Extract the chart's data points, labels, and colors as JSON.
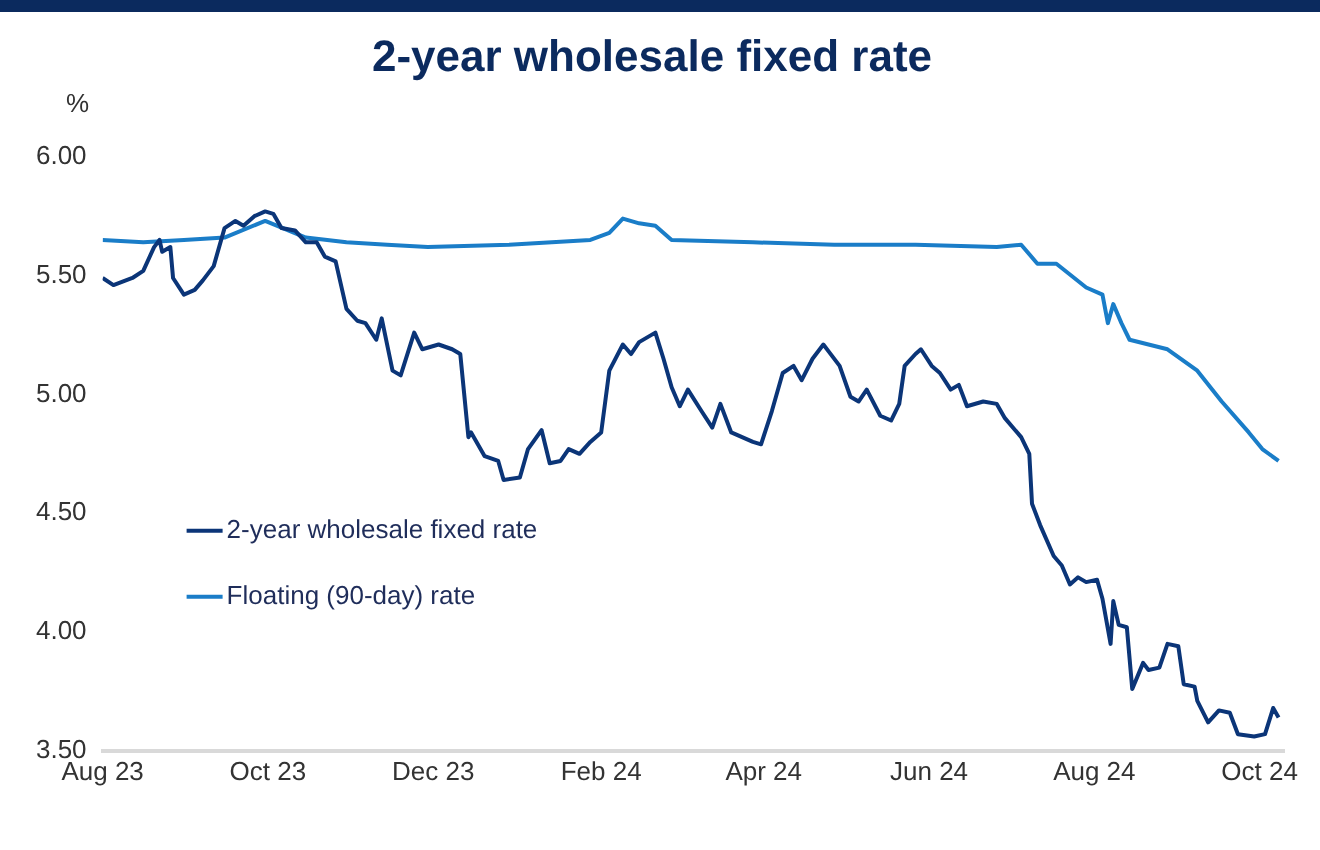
{
  "chart_data": {
    "type": "line",
    "title": "2-year wholesale fixed rate",
    "ylabel": "%",
    "xlim": [
      "2023-08-01",
      "2024-10-10"
    ],
    "xticks": [
      {
        "value": "2023-08-01",
        "label": "Aug 23"
      },
      {
        "value": "2023-10-01",
        "label": "Oct 23"
      },
      {
        "value": "2023-12-01",
        "label": "Dec 23"
      },
      {
        "value": "2024-02-01",
        "label": "Feb 24"
      },
      {
        "value": "2024-04-01",
        "label": "Apr 24"
      },
      {
        "value": "2024-06-01",
        "label": "Jun 24"
      },
      {
        "value": "2024-08-01",
        "label": "Aug 24"
      },
      {
        "value": "2024-10-01",
        "label": "Oct 24"
      }
    ],
    "ylim": [
      3.5,
      6.0
    ],
    "yticks": [
      {
        "value": 3.5,
        "label": "3.50"
      },
      {
        "value": 4.0,
        "label": "4.00"
      },
      {
        "value": 4.5,
        "label": "4.50"
      },
      {
        "value": 5.0,
        "label": "5.00"
      },
      {
        "value": 5.5,
        "label": "5.50"
      },
      {
        "value": 6.0,
        "label": "6.00"
      }
    ],
    "grid": false,
    "legend": "bottom left",
    "marker": "none",
    "line_style": "solid",
    "series": [
      {
        "name": "2-year wholesale fixed rate",
        "color": "#0b3578",
        "x": [
          "2023-08-01",
          "2023-08-05",
          "2023-08-12",
          "2023-08-16",
          "2023-08-20",
          "2023-08-22",
          "2023-08-23",
          "2023-08-26",
          "2023-08-27",
          "2023-08-31",
          "2023-09-04",
          "2023-09-07",
          "2023-09-11",
          "2023-09-15",
          "2023-09-19",
          "2023-09-22",
          "2023-09-26",
          "2023-09-30",
          "2023-10-03",
          "2023-10-06",
          "2023-10-11",
          "2023-10-15",
          "2023-10-19",
          "2023-10-22",
          "2023-10-26",
          "2023-10-30",
          "2023-11-03",
          "2023-11-06",
          "2023-11-10",
          "2023-11-12",
          "2023-11-16",
          "2023-11-19",
          "2023-11-24",
          "2023-11-27",
          "2023-12-03",
          "2023-12-08",
          "2023-12-11",
          "2023-12-14",
          "2023-12-15",
          "2023-12-20",
          "2023-12-25",
          "2023-12-27",
          "2024-01-02",
          "2024-01-05",
          "2024-01-10",
          "2024-01-13",
          "2024-01-17",
          "2024-01-20",
          "2024-01-24",
          "2024-01-28",
          "2024-02-01",
          "2024-02-04",
          "2024-02-09",
          "2024-02-12",
          "2024-02-15",
          "2024-02-21",
          "2024-02-24",
          "2024-02-27",
          "2024-03-01",
          "2024-03-04",
          "2024-03-09",
          "2024-03-13",
          "2024-03-16",
          "2024-03-20",
          "2024-03-28",
          "2024-03-31",
          "2024-04-04",
          "2024-04-08",
          "2024-04-12",
          "2024-04-15",
          "2024-04-19",
          "2024-04-23",
          "2024-04-25",
          "2024-04-29",
          "2024-05-03",
          "2024-05-06",
          "2024-05-09",
          "2024-05-14",
          "2024-05-18",
          "2024-05-21",
          "2024-05-23",
          "2024-05-27",
          "2024-05-29",
          "2024-06-02",
          "2024-06-05",
          "2024-06-09",
          "2024-06-12",
          "2024-06-15",
          "2024-06-21",
          "2024-06-26",
          "2024-06-29",
          "2024-07-05",
          "2024-07-08",
          "2024-07-09",
          "2024-07-12",
          "2024-07-17",
          "2024-07-20",
          "2024-07-23",
          "2024-07-26",
          "2024-07-29",
          "2024-08-02",
          "2024-08-04",
          "2024-08-07",
          "2024-08-08",
          "2024-08-10",
          "2024-08-13",
          "2024-08-15",
          "2024-08-19",
          "2024-08-21",
          "2024-08-25",
          "2024-08-28",
          "2024-09-01",
          "2024-09-03",
          "2024-09-07",
          "2024-09-08",
          "2024-09-12",
          "2024-09-16",
          "2024-09-20",
          "2024-09-23",
          "2024-09-29",
          "2024-10-03",
          "2024-10-06",
          "2024-10-08"
        ],
        "values": [
          5.49,
          5.46,
          5.49,
          5.52,
          5.62,
          5.65,
          5.6,
          5.62,
          5.49,
          5.42,
          5.44,
          5.48,
          5.54,
          5.7,
          5.73,
          5.71,
          5.75,
          5.77,
          5.76,
          5.7,
          5.69,
          5.64,
          5.64,
          5.58,
          5.56,
          5.36,
          5.31,
          5.3,
          5.23,
          5.32,
          5.1,
          5.08,
          5.26,
          5.19,
          5.21,
          5.19,
          5.17,
          4.82,
          4.84,
          4.74,
          4.72,
          4.64,
          4.65,
          4.77,
          4.85,
          4.71,
          4.72,
          4.77,
          4.75,
          4.8,
          4.84,
          5.1,
          5.21,
          5.17,
          5.22,
          5.26,
          5.15,
          5.03,
          4.95,
          5.02,
          4.93,
          4.86,
          4.96,
          4.84,
          4.8,
          4.79,
          4.93,
          5.09,
          5.12,
          5.06,
          5.15,
          5.21,
          5.18,
          5.12,
          4.99,
          4.97,
          5.02,
          4.91,
          4.89,
          4.96,
          5.12,
          5.17,
          5.19,
          5.12,
          5.09,
          5.02,
          5.04,
          4.95,
          4.97,
          4.96,
          4.9,
          4.82,
          4.75,
          4.54,
          4.45,
          4.32,
          4.28,
          4.2,
          4.23,
          4.21,
          4.22,
          4.14,
          3.95,
          4.13,
          4.03,
          4.02,
          3.76,
          3.87,
          3.84,
          3.85,
          3.95,
          3.94,
          3.78,
          3.77,
          3.71,
          3.62,
          3.67,
          3.66,
          3.57,
          3.56,
          3.57,
          3.68,
          3.64
        ]
      },
      {
        "name": "Floating (90-day) rate",
        "color": "#1a7dc8",
        "x": [
          "2023-08-01",
          "2023-08-16",
          "2023-08-31",
          "2023-09-15",
          "2023-09-30",
          "2023-10-15",
          "2023-10-30",
          "2023-11-14",
          "2023-11-29",
          "2023-12-29",
          "2024-01-28",
          "2024-02-04",
          "2024-02-09",
          "2024-02-15",
          "2024-02-21",
          "2024-02-27",
          "2024-03-28",
          "2024-04-27",
          "2024-05-27",
          "2024-06-26",
          "2024-07-05",
          "2024-07-11",
          "2024-07-18",
          "2024-07-29",
          "2024-08-04",
          "2024-08-06",
          "2024-08-08",
          "2024-08-11",
          "2024-08-14",
          "2024-08-28",
          "2024-09-08",
          "2024-09-17",
          "2024-09-27",
          "2024-10-02",
          "2024-10-08"
        ],
        "values": [
          5.65,
          5.64,
          5.65,
          5.66,
          5.73,
          5.66,
          5.64,
          5.63,
          5.62,
          5.63,
          5.65,
          5.68,
          5.74,
          5.72,
          5.71,
          5.65,
          5.64,
          5.63,
          5.63,
          5.62,
          5.63,
          5.55,
          5.55,
          5.45,
          5.42,
          5.3,
          5.38,
          5.3,
          5.23,
          5.19,
          5.1,
          4.97,
          4.84,
          4.77,
          4.72
        ]
      }
    ]
  }
}
